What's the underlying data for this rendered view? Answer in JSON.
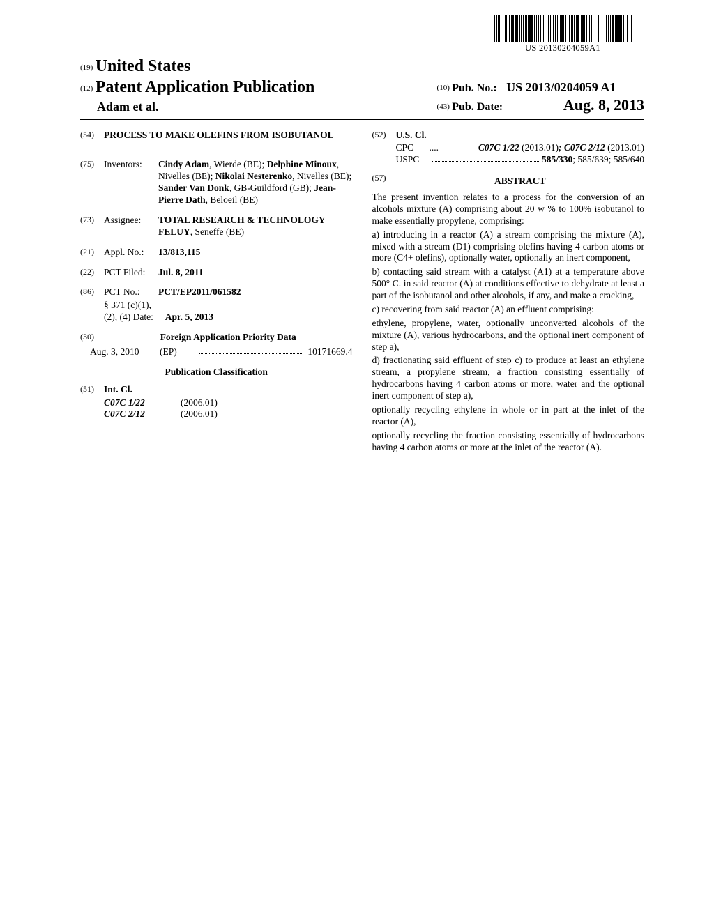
{
  "barcode_number": "US 20130204059A1",
  "header": {
    "num19": "(19)",
    "country": "United States",
    "num12": "(12)",
    "pubtype": "Patent Application Publication",
    "authors": "Adam et al.",
    "num10": "(10)",
    "pubno_label": "Pub. No.:",
    "pubno_value": "US 2013/0204059 A1",
    "num43": "(43)",
    "pubdate_label": "Pub. Date:",
    "pubdate_value": "Aug. 8, 2013"
  },
  "left": {
    "f54_num": "(54)",
    "f54_title": "PROCESS TO MAKE OLEFINS FROM ISOBUTANOL",
    "f75_num": "(75)",
    "f75_label": "Inventors:",
    "f75_value_html": "Cindy Adam|, Wierde (BE); |Delphine Minoux|, Nivelles (BE); |Nikolai Nesterenko|, Nivelles (BE); |Sander Van Donk|, GB-Guildford (GB); |Jean-Pierre Dath|, Beloeil (BE)",
    "f73_num": "(73)",
    "f73_label": "Assignee:",
    "f73_value": "TOTAL RESEARCH & TECHNOLOGY FELUY",
    "f73_tail": ", Seneffe (BE)",
    "f21_num": "(21)",
    "f21_label": "Appl. No.:",
    "f21_value": "13/813,115",
    "f22_num": "(22)",
    "f22_label": "PCT Filed:",
    "f22_value": "Jul. 8, 2011",
    "f86_num": "(86)",
    "f86_label": "PCT No.:",
    "f86_value": "PCT/EP2011/061582",
    "f86_s371a": "§ 371 (c)(1),",
    "f86_s371b": "(2), (4) Date:",
    "f86_s371v": "Apr. 5, 2013",
    "f30_num": "(30)",
    "f30_heading": "Foreign Application Priority Data",
    "priority_date": "Aug. 3, 2010",
    "priority_cc": "(EP)",
    "priority_app": "10171669.4",
    "pubclass_heading": "Publication Classification",
    "f51_num": "(51)",
    "f51_label": "Int. Cl.",
    "intcl": [
      {
        "code": "C07C 1/22",
        "ver": "(2006.01)"
      },
      {
        "code": "C07C 2/12",
        "ver": "(2006.01)"
      }
    ]
  },
  "right": {
    "f52_num": "(52)",
    "f52_label": "U.S. Cl.",
    "cpc_lead": "CPC",
    "cpc_val": "C07C 1/22 (2013.01); C07C 2/12 (2013.01)",
    "uspc_lead": "USPC",
    "uspc_val": "585/330; 585/639; 585/640",
    "uspc_bold": "585/330",
    "uspc_rest": "; 585/639; 585/640",
    "f57_num": "(57)",
    "abstract_heading": "ABSTRACT",
    "abstract_intro": "The present invention relates to a process for the conversion of an alcohols mixture (A) comprising about 20 w % to 100% isobutanol to make essentially propylene, comprising:",
    "steps": [
      "a) introducing in a reactor (A) a stream comprising the mixture (A), mixed with a stream (D1) comprising olefins having 4 carbon atoms or more (C4+ olefins), optionally water, optionally an inert component,",
      "b) contacting said stream with a catalyst (A1) at a temperature above 500° C. in said reactor (A) at conditions effective to dehydrate at least a part of the isobutanol and other alcohols, if any, and make a cracking,",
      "c) recovering from said reactor (A) an effluent comprising:",
      "ethylene, propylene, water, optionally unconverted alcohols of the mixture (A), various hydrocarbons, and the optional inert component of step a),",
      "d) fractionating said effluent of step c) to produce at least an ethylene stream, a propylene stream, a fraction consisting essentially of hydrocarbons having 4 carbon atoms or more, water and the optional inert component of step a),",
      "optionally recycling ethylene in whole or in part at the inlet of the reactor (A),",
      "optionally recycling the fraction consisting essentially of hydrocarbons having 4 carbon atoms or more at the inlet of the reactor (A)."
    ]
  },
  "barcode_widths": [
    1,
    3,
    1,
    1,
    2,
    1,
    3,
    1,
    1,
    2,
    1,
    2,
    1,
    1,
    1,
    3,
    2,
    1,
    1,
    1,
    2,
    1,
    3,
    1,
    1,
    2,
    1,
    1,
    2,
    1,
    1,
    2,
    3,
    1,
    1,
    1,
    2,
    1,
    3,
    1,
    1,
    2,
    1,
    2,
    1,
    1,
    2,
    3,
    1,
    1,
    1,
    2,
    1,
    1,
    2,
    1,
    1,
    3,
    2,
    1,
    1,
    2,
    1,
    3,
    1,
    1,
    2,
    1,
    1,
    2,
    1,
    2,
    1,
    1,
    2,
    1,
    3,
    1,
    1,
    2,
    1,
    1,
    2,
    3,
    1,
    1,
    2,
    1,
    1,
    2,
    1,
    3,
    1,
    1,
    2,
    1,
    1,
    2,
    1,
    3,
    2,
    1,
    1,
    2,
    1,
    3,
    1,
    1,
    2,
    1,
    2,
    1,
    1,
    1,
    3,
    2,
    1,
    1,
    2,
    1,
    3,
    1,
    1,
    1,
    2,
    1,
    1,
    2,
    1,
    3,
    1,
    1,
    1,
    3
  ]
}
